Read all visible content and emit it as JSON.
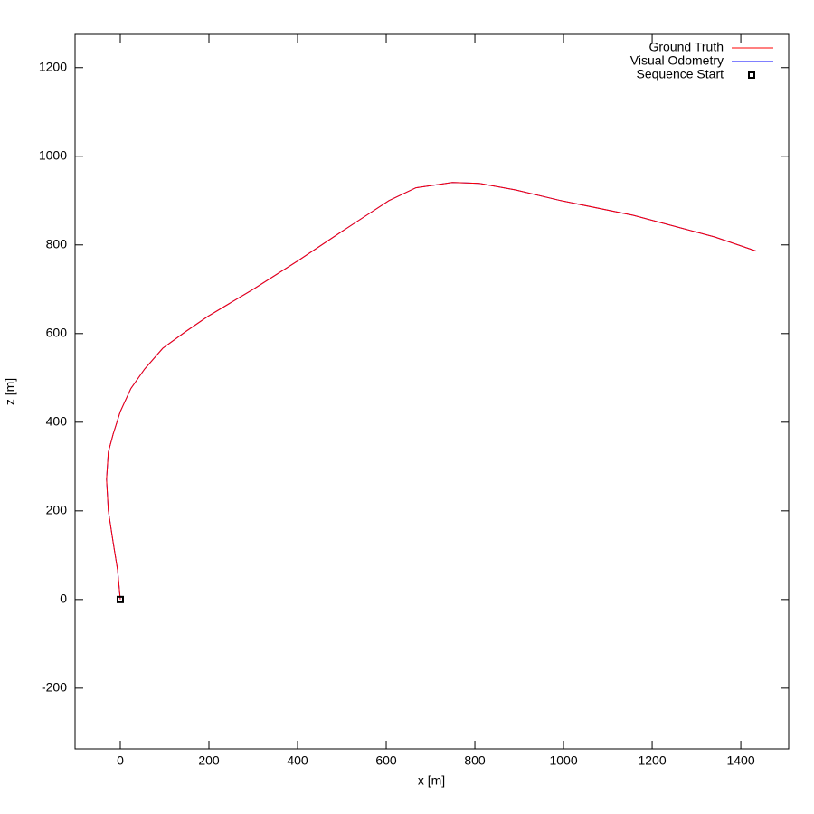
{
  "chart_data": {
    "type": "line",
    "xlabel": "x [m]",
    "ylabel": "z [m]",
    "xlim": [
      -102,
      1508
    ],
    "ylim": [
      -337,
      1275
    ],
    "xticks": [
      0,
      200,
      400,
      600,
      800,
      1000,
      1200,
      1400
    ],
    "yticks": [
      -200,
      0,
      200,
      400,
      600,
      800,
      1000,
      1200
    ],
    "grid": false,
    "legend": "top-right",
    "series": [
      {
        "name": "Ground Truth",
        "color": "#ff0000",
        "marker": "line",
        "x": [
          0,
          -6,
          -16,
          -27,
          -31,
          -27,
          -16,
          0,
          24,
          55,
          96,
          147,
          198,
          300,
          402,
          504,
          565,
          606,
          667,
          749,
          810,
          892,
          994,
          1157,
          1341,
          1435
        ],
        "values": [
          0,
          67,
          129,
          200,
          271,
          333,
          373,
          424,
          476,
          520,
          567,
          604,
          639,
          700,
          765,
          833,
          873,
          900,
          929,
          941,
          939,
          924,
          900,
          867,
          818,
          786
        ]
      },
      {
        "name": "Visual Odometry",
        "color": "#0000ff",
        "marker": "line",
        "x": [
          0,
          -6,
          -16,
          -27,
          -31,
          -27,
          -16,
          0,
          24,
          55,
          96,
          147,
          198,
          300,
          402,
          504,
          565,
          606,
          667,
          749,
          810,
          892,
          994,
          1157,
          1341,
          1435
        ],
        "values": [
          0,
          67,
          129,
          200,
          271,
          333,
          373,
          424,
          476,
          520,
          567,
          604,
          639,
          700,
          765,
          833,
          873,
          900,
          929,
          941,
          939,
          924,
          900,
          867,
          818,
          786
        ]
      },
      {
        "name": "Sequence Start",
        "color": "#000000",
        "marker": "square",
        "x": [
          0
        ],
        "values": [
          0
        ]
      }
    ]
  }
}
